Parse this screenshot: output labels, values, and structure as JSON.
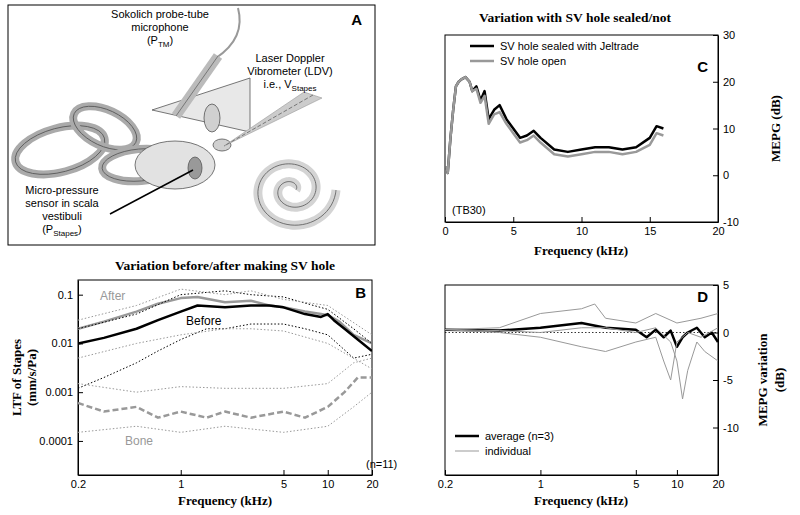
{
  "diagram": {
    "panel": "A",
    "labels": [
      {
        "lines": [
          "Sokolich probe-tube",
          "microphone"
        ],
        "symbol": {
          "text": "(P",
          "sub": "TM",
          "after": ")"
        }
      },
      {
        "lines": [
          "Laser Doppler",
          "Vibrometer (LDV)"
        ],
        "symbol": {
          "text": "i.e., V",
          "sub": "Stapes"
        }
      },
      {
        "lines": [
          "Micro-pressure",
          "sensor in scala",
          "vestibuli"
        ],
        "symbol": {
          "text": "(P",
          "sub": "Stapes",
          "after": ")"
        }
      }
    ]
  },
  "chart_data": [
    {
      "type": "line",
      "title": "Variation before/after making SV hole",
      "xlabel": "Frequency (kHz)",
      "ylabel": [
        "LTF of Stapes",
        "(mm/s/Pa)"
      ],
      "log": true,
      "xlim": [
        0.2,
        20
      ],
      "ylim": [
        2e-05,
        0.2
      ],
      "xticks": [
        0.2,
        1,
        5,
        10,
        20
      ],
      "yticks": [
        0.0001,
        0.001,
        0.01,
        0.1
      ],
      "annotations": [
        "B",
        "(n=11)"
      ],
      "series": [
        {
          "name": "After",
          "color": "#999999",
          "line_style": "solid",
          "x": [
            0.2,
            0.3,
            0.5,
            0.7,
            1,
            1.3,
            2,
            3,
            4,
            5,
            7,
            9,
            10,
            12,
            15,
            20
          ],
          "values": [
            0.02,
            0.028,
            0.045,
            0.065,
            0.085,
            0.09,
            0.07,
            0.075,
            0.06,
            0.055,
            0.045,
            0.04,
            0.038,
            0.028,
            0.015,
            0.01
          ]
        },
        {
          "name": "Before",
          "color": "#000000",
          "line_style": "solid",
          "x": [
            0.2,
            0.3,
            0.5,
            0.7,
            1,
            1.3,
            2,
            3,
            4,
            5,
            7,
            9,
            10,
            11,
            13,
            16,
            20
          ],
          "values": [
            0.01,
            0.013,
            0.02,
            0.03,
            0.045,
            0.06,
            0.055,
            0.06,
            0.06,
            0.055,
            0.04,
            0.035,
            0.04,
            0.03,
            0.02,
            0.012,
            0.007
          ]
        },
        {
          "name": "Bone",
          "color": "#999999",
          "line_style": "dashed",
          "x": [
            0.2,
            0.3,
            0.5,
            0.7,
            1,
            1.5,
            2,
            3,
            5,
            7,
            10,
            13,
            16,
            20
          ],
          "values": [
            0.0006,
            0.0004,
            0.0005,
            0.0003,
            0.0004,
            0.0003,
            0.0004,
            0.0003,
            0.0004,
            0.0003,
            0.0005,
            0.001,
            0.002,
            0.002
          ]
        },
        {
          "color": "#000000",
          "line_style": "dotted",
          "x": [
            0.2,
            0.5,
            1,
            2,
            3,
            5,
            8,
            10,
            15,
            20
          ],
          "values": [
            0.02,
            0.04,
            0.1,
            0.12,
            0.1,
            0.09,
            0.06,
            0.05,
            0.02,
            0.01
          ]
        },
        {
          "color": "#999999",
          "line_style": "dotted",
          "x": [
            0.2,
            0.5,
            1,
            2,
            3,
            5,
            10,
            20
          ],
          "values": [
            0.03,
            0.06,
            0.13,
            0.1,
            0.12,
            0.08,
            0.06,
            0.015
          ]
        },
        {
          "color": "#000000",
          "line_style": "dotted",
          "x": [
            0.2,
            0.3,
            0.5,
            0.7,
            1,
            1.5,
            2,
            3,
            5,
            7,
            10,
            15,
            20
          ],
          "values": [
            0.0012,
            0.002,
            0.004,
            0.007,
            0.012,
            0.02,
            0.02,
            0.025,
            0.025,
            0.02,
            0.015,
            0.005,
            0.006
          ]
        },
        {
          "color": "#999999",
          "line_style": "dotted",
          "x": [
            0.2,
            0.5,
            1,
            2,
            3,
            5,
            10,
            20
          ],
          "values": [
            0.005,
            0.01,
            0.015,
            0.02,
            0.02,
            0.018,
            0.01,
            0.003
          ]
        },
        {
          "color": "#999999",
          "line_style": "dotted",
          "x": [
            0.2,
            0.5,
            1,
            2,
            5,
            10,
            15,
            20
          ],
          "values": [
            0.0015,
            0.001,
            0.0013,
            0.0012,
            0.0012,
            0.0015,
            0.004,
            0.005
          ]
        },
        {
          "color": "#999999",
          "line_style": "dotted",
          "x": [
            0.2,
            0.5,
            1,
            2,
            5,
            10,
            15,
            20
          ],
          "values": [
            0.00015,
            0.0002,
            0.00015,
            0.0002,
            0.00015,
            0.0002,
            0.0005,
            0.001
          ]
        }
      ]
    },
    {
      "type": "line",
      "title": "Variation with SV hole sealed/not",
      "xlabel": "Frequency (kHz)",
      "ylabel": "MEPG (dB)",
      "xlim": [
        0,
        20
      ],
      "ylim": [
        -10,
        30
      ],
      "xticks": [
        0,
        5,
        10,
        15,
        20
      ],
      "yticks": [
        -10,
        0,
        10,
        20,
        30
      ],
      "legend": "upper right",
      "annotations": [
        "C",
        "(TB30)"
      ],
      "x": [
        0.1,
        0.2,
        0.4,
        0.6,
        0.8,
        1.0,
        1.2,
        1.5,
        1.8,
        2.0,
        2.3,
        2.6,
        2.9,
        3.2,
        3.6,
        4.0,
        4.5,
        5.0,
        5.5,
        6.0,
        6.5,
        7.0,
        8.0,
        9.0,
        10,
        11,
        12,
        13,
        14,
        15,
        15.5,
        16
      ],
      "series": [
        {
          "name": "SV hole sealed with Jeltrade",
          "color": "#000000",
          "line_style": "solid",
          "values": [
            2,
            0.5,
            8,
            14,
            19,
            20,
            20.5,
            21,
            20,
            18,
            19,
            16,
            18,
            12,
            14,
            15,
            12,
            10,
            8,
            8.5,
            9.5,
            8,
            5.5,
            5,
            5.5,
            6,
            6,
            5.5,
            6,
            8,
            10.5,
            10
          ]
        },
        {
          "name": "SV hole open",
          "color": "#999999",
          "line_style": "solid",
          "values": [
            2,
            0.5,
            8,
            14,
            19,
            20,
            20.5,
            21,
            20,
            18,
            18.5,
            15.5,
            17,
            11,
            13,
            13.5,
            11,
            9,
            7,
            7.5,
            8.5,
            7,
            4.5,
            4,
            4.5,
            5,
            5,
            4.5,
            5,
            6.5,
            9,
            8.5
          ]
        }
      ]
    },
    {
      "type": "line",
      "xlabel": "Frequency (kHz)",
      "ylabel": [
        "MEPG variation",
        "(dB)"
      ],
      "log": "x",
      "xlim": [
        0.2,
        20
      ],
      "ylim": [
        -15,
        5
      ],
      "xticks": [
        0.2,
        1,
        5,
        10,
        20
      ],
      "yticks": [
        -10,
        -5,
        0,
        5
      ],
      "legend": "lower left",
      "annotations": [
        "D"
      ],
      "series": [
        {
          "name": "average (n=3)",
          "color": "#000000",
          "line_style": "solid",
          "x": [
            0.2,
            0.5,
            1,
            2,
            3,
            5,
            6,
            7,
            8,
            9,
            10,
            11,
            12,
            14,
            16,
            18,
            20
          ],
          "values": [
            0.3,
            0.2,
            0.5,
            1,
            0.5,
            0.3,
            -0.5,
            0.3,
            -0.5,
            0.2,
            -1.5,
            -0.5,
            0,
            0.5,
            -0.5,
            0,
            -1
          ]
        },
        {
          "name": "individual",
          "color": "#999999",
          "line_style": "solid",
          "x": [
            0.2,
            0.5,
            1,
            2,
            2.5,
            3,
            5,
            7,
            10,
            15,
            20
          ],
          "values": [
            0.3,
            0.5,
            2,
            2.5,
            3,
            1.5,
            1,
            2,
            1,
            1.5,
            2
          ]
        },
        {
          "color": "#999999",
          "line_style": "solid",
          "x": [
            0.2,
            0.5,
            1,
            2,
            3,
            5,
            7,
            8,
            9,
            10,
            12,
            15,
            20
          ],
          "values": [
            0.3,
            0,
            -0.5,
            -1.5,
            -2,
            -1,
            -0.5,
            -3,
            -5,
            -1,
            0,
            -0.5,
            0.5
          ]
        },
        {
          "color": "#999999",
          "line_style": "solid",
          "x": [
            0.2,
            0.5,
            1,
            2,
            3,
            5,
            7,
            9,
            10,
            11,
            12,
            14,
            16,
            20
          ],
          "values": [
            0.3,
            0.2,
            0,
            0.5,
            0.5,
            0,
            0.5,
            -1,
            -3,
            -7,
            -4,
            -1,
            -2,
            -3
          ]
        }
      ]
    }
  ]
}
